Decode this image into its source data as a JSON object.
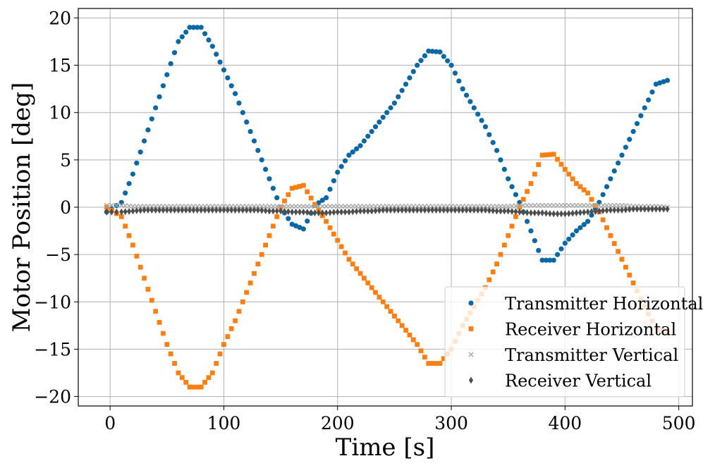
{
  "chart_data": {
    "type": "scatter",
    "title": "",
    "xlabel": "Time [s]",
    "ylabel": "Motor Position [deg]",
    "xlim": [
      -28,
      512
    ],
    "ylim": [
      -21,
      21
    ],
    "xticks": [
      0,
      100,
      200,
      300,
      400,
      500
    ],
    "yticks": [
      -20,
      -15,
      -10,
      -5,
      0,
      5,
      10,
      15,
      20
    ],
    "xtick_labels": [
      "0",
      "100",
      "200",
      "300",
      "400",
      "500"
    ],
    "ytick_labels": [
      "−20",
      "−15",
      "−10",
      "−5",
      "0",
      "5",
      "10",
      "15",
      "20"
    ],
    "grid": true,
    "legend_position": "lower-right",
    "series": [
      {
        "name": "Transmitter Horizontal",
        "color": "#0868a6",
        "marker": "circle",
        "x": [
          -3,
          10,
          20,
          30,
          40,
          50,
          60,
          70,
          80,
          90,
          100,
          110,
          120,
          130,
          140,
          150,
          160,
          170,
          180,
          190,
          200,
          210,
          220,
          230,
          240,
          250,
          260,
          270,
          280,
          290,
          300,
          310,
          320,
          330,
          340,
          350,
          360,
          370,
          380,
          390,
          400,
          410,
          420,
          430,
          440,
          450,
          460,
          470,
          480,
          490
        ],
        "y": [
          -0.5,
          0.5,
          3.5,
          7,
          10.5,
          14,
          17.5,
          19,
          19,
          17,
          14.5,
          12,
          9,
          6,
          3,
          0,
          -1.8,
          -2.3,
          0.2,
          1,
          3.7,
          5.5,
          6.5,
          8,
          9.5,
          11,
          13,
          15,
          16.5,
          16.4,
          15,
          12.5,
          10.5,
          8.5,
          6,
          3,
          0.5,
          -2.5,
          -5.6,
          -5.6,
          -3.8,
          -2.5,
          -1.5,
          0.5,
          3,
          5.5,
          8,
          10.5,
          13,
          13.4
        ]
      },
      {
        "name": "Receiver Horizontal",
        "color": "#fe7f10",
        "marker": "square",
        "x": [
          -3,
          10,
          20,
          30,
          40,
          50,
          60,
          70,
          80,
          90,
          100,
          110,
          120,
          130,
          140,
          150,
          160,
          170,
          180,
          190,
          200,
          210,
          220,
          230,
          240,
          250,
          260,
          270,
          280,
          290,
          300,
          310,
          320,
          330,
          340,
          350,
          360,
          370,
          380,
          390,
          400,
          410,
          420,
          430,
          440,
          450,
          460,
          470,
          480,
          490
        ],
        "y": [
          0,
          -1,
          -4,
          -7.5,
          -11,
          -14.5,
          -17.5,
          -19,
          -19,
          -17.5,
          -14.5,
          -12,
          -9,
          -6,
          -3,
          0,
          2,
          2.3,
          0.3,
          -1.5,
          -3.5,
          -5.5,
          -7,
          -8.5,
          -10,
          -11.5,
          -13,
          -14.5,
          -16.5,
          -16.5,
          -15,
          -12.5,
          -10.5,
          -8.5,
          -6,
          -3,
          0,
          2.5,
          5.5,
          5.6,
          4,
          2.5,
          1.5,
          -0.5,
          -3,
          -5.5,
          -8,
          -10.5,
          -12.8,
          -13.3
        ]
      },
      {
        "name": "Transmitter Vertical",
        "color": "#a8a8a8",
        "marker": "x",
        "x": [
          -3,
          10,
          20,
          30,
          40,
          50,
          60,
          70,
          80,
          90,
          100,
          110,
          120,
          130,
          140,
          150,
          160,
          170,
          180,
          190,
          200,
          210,
          220,
          230,
          240,
          250,
          260,
          270,
          280,
          290,
          300,
          310,
          320,
          330,
          340,
          350,
          360,
          370,
          380,
          390,
          400,
          410,
          420,
          430,
          440,
          450,
          460,
          470,
          480,
          490
        ],
        "y": [
          0.2,
          0.2,
          0.1,
          0.1,
          0.1,
          0.1,
          0.1,
          0.1,
          0.1,
          0.1,
          0.1,
          0.1,
          0.1,
          0.1,
          0.1,
          0.1,
          0.1,
          0.1,
          0.1,
          0.1,
          0.1,
          0.1,
          0.1,
          0.1,
          0.1,
          0.1,
          0.1,
          0.1,
          0.1,
          0.1,
          0.1,
          0.1,
          0.1,
          0.1,
          0.1,
          0.1,
          0.2,
          0.2,
          0.2,
          0.2,
          0.2,
          0.2,
          0.2,
          0.2,
          0.2,
          0.2,
          0.1,
          0.1,
          0.1,
          0
        ]
      },
      {
        "name": "Receiver Vertical",
        "color": "#4d4d4d",
        "marker": "diamond",
        "x": [
          -3,
          10,
          20,
          30,
          40,
          50,
          60,
          70,
          80,
          90,
          100,
          110,
          120,
          130,
          140,
          150,
          160,
          170,
          180,
          190,
          200,
          210,
          220,
          230,
          240,
          250,
          260,
          270,
          280,
          290,
          300,
          310,
          320,
          330,
          340,
          350,
          360,
          370,
          380,
          390,
          400,
          410,
          420,
          430,
          440,
          450,
          460,
          470,
          480,
          490
        ],
        "y": [
          -0.5,
          -0.5,
          -0.4,
          -0.3,
          -0.3,
          -0.3,
          -0.3,
          -0.3,
          -0.3,
          -0.3,
          -0.3,
          -0.3,
          -0.3,
          -0.3,
          -0.4,
          -0.4,
          -0.5,
          -0.5,
          -0.6,
          -0.6,
          -0.5,
          -0.5,
          -0.4,
          -0.4,
          -0.3,
          -0.3,
          -0.3,
          -0.3,
          -0.3,
          -0.3,
          -0.3,
          -0.3,
          -0.3,
          -0.3,
          -0.4,
          -0.4,
          -0.5,
          -0.6,
          -0.6,
          -0.7,
          -0.7,
          -0.6,
          -0.5,
          -0.4,
          -0.3,
          -0.3,
          -0.2,
          -0.2,
          -0.2,
          -0.2
        ]
      }
    ]
  }
}
